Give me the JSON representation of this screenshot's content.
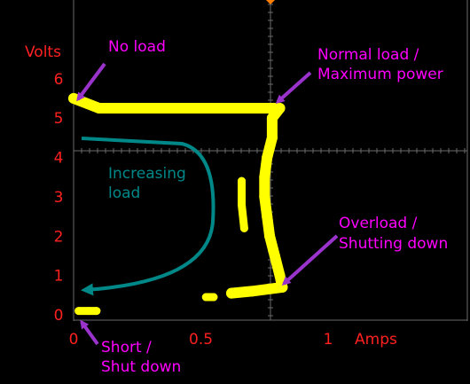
{
  "chart_data": {
    "type": "scatter",
    "title": "",
    "xlabel": "Amps",
    "ylabel": "Volts",
    "xlim": [
      0,
      1.55
    ],
    "ylim": [
      0,
      8
    ],
    "x_ticks": [
      "0",
      "0.5",
      "1"
    ],
    "x_tick_values": [
      0,
      0.5,
      1
    ],
    "y_ticks": [
      "0",
      "1",
      "2",
      "3",
      "4",
      "5",
      "6"
    ],
    "y_tick_values": [
      0,
      1,
      2,
      3,
      4,
      5,
      6
    ],
    "grid": true,
    "trace_color": "#ffff00",
    "axis_label_color": "#ff2020",
    "annotation_color": "#ff00ff",
    "arrow_color": "#9933cc",
    "curve_color": "#008888",
    "series": [
      {
        "points": [
          [
            0.0,
            5.5
          ],
          [
            0.1,
            5.25
          ],
          [
            0.2,
            5.25
          ],
          [
            0.3,
            5.25
          ],
          [
            0.4,
            5.25
          ],
          [
            0.5,
            5.25
          ],
          [
            0.6,
            5.25
          ],
          [
            0.7,
            5.25
          ],
          [
            0.81,
            5.25
          ],
          [
            0.78,
            5.0
          ],
          [
            0.78,
            4.5
          ],
          [
            0.76,
            4.0
          ],
          [
            0.75,
            3.5
          ],
          [
            0.75,
            3.0
          ],
          [
            0.76,
            2.5
          ],
          [
            0.77,
            2.0
          ],
          [
            0.79,
            1.5
          ],
          [
            0.81,
            1.0
          ],
          [
            0.82,
            0.7
          ],
          [
            0.7,
            0.6
          ],
          [
            0.62,
            0.55
          ]
        ]
      },
      {
        "points": [
          [
            0.66,
            3.4
          ],
          [
            0.66,
            2.8
          ],
          [
            0.67,
            2.2
          ]
        ]
      },
      {
        "points": [
          [
            0.52,
            0.45
          ],
          [
            0.55,
            0.45
          ]
        ]
      },
      {
        "points": [
          [
            0.02,
            0.1
          ],
          [
            0.06,
            0.1
          ],
          [
            0.09,
            0.1
          ]
        ]
      }
    ]
  },
  "annotations": {
    "no_load": "No load",
    "normal_load_1": "Normal load /",
    "normal_load_2": "Maximum power",
    "overload_1": "Overload /",
    "overload_2": "Shutting down",
    "short_1": "Short /",
    "short_2": "Shut down",
    "increasing_1": "Increasing",
    "increasing_2": "load"
  }
}
